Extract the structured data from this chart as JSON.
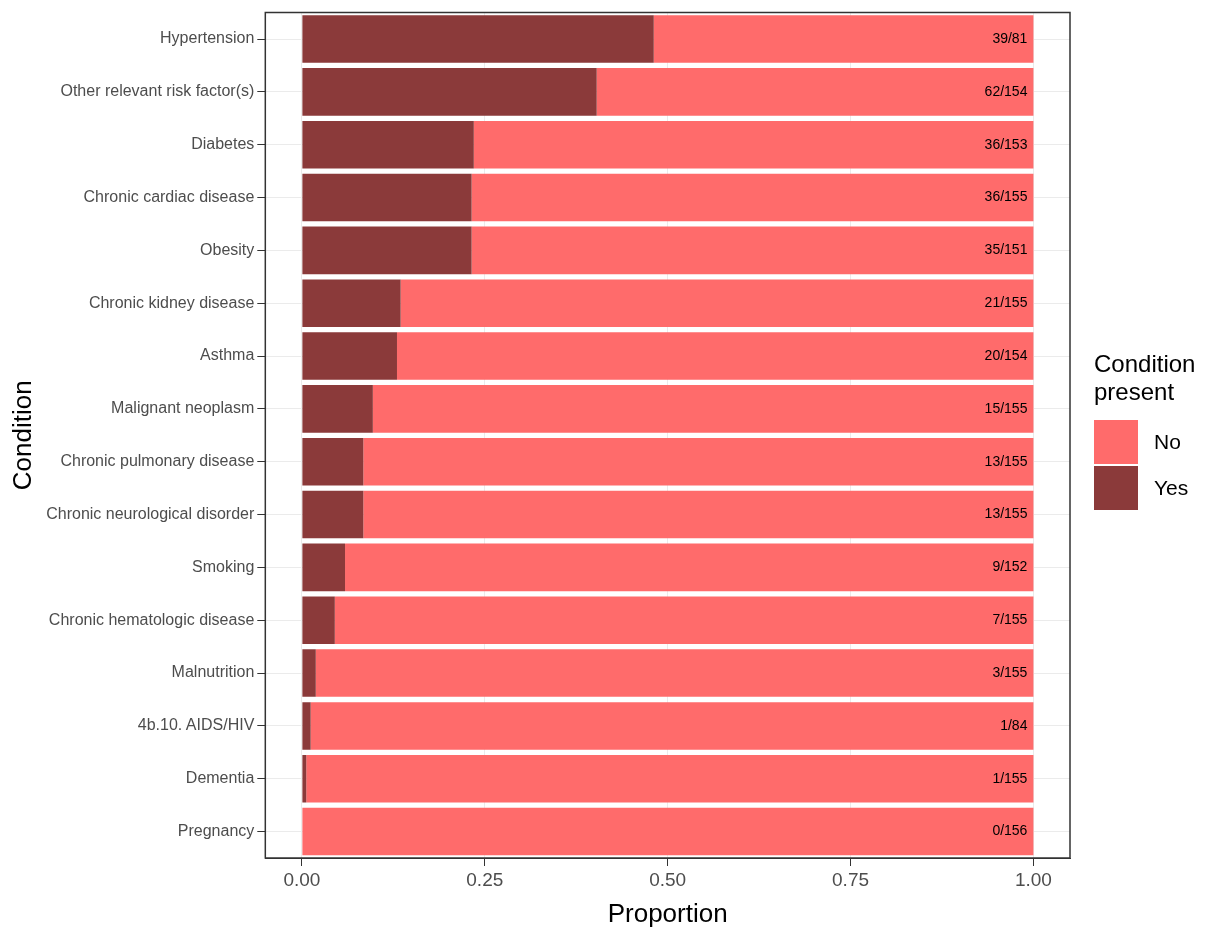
{
  "chart_data": {
    "type": "bar",
    "orientation": "horizontal",
    "stacked": true,
    "xlabel": "Proportion",
    "ylabel": "Condition",
    "legend_title": "Condition present",
    "legend": "right",
    "grid": true,
    "categories": [
      "Hypertension",
      "Other relevant risk factor(s)",
      "Diabetes",
      "Chronic cardiac disease",
      "Obesity",
      "Chronic kidney disease",
      "Asthma",
      "Malignant neoplasm",
      "Chronic pulmonary disease",
      "Chronic neurological disorder",
      "Smoking",
      "Chronic hematologic disease",
      "Malnutrition",
      "4b.10. AIDS/HIV",
      "Dementia",
      "Pregnancy"
    ],
    "xlim": [
      -0.05,
      1.05
    ],
    "xticks": [
      {
        "value": 0,
        "label": "0.00"
      },
      {
        "value": 0.25,
        "label": "0.25"
      },
      {
        "value": 0.5,
        "label": "0.50"
      },
      {
        "value": 0.75,
        "label": "0.75"
      },
      {
        "value": 1,
        "label": "1.00"
      }
    ],
    "series": [
      {
        "name": "Yes",
        "color": "#8b3a3a",
        "values": [
          0.481,
          0.403,
          0.235,
          0.232,
          0.232,
          0.135,
          0.13,
          0.097,
          0.084,
          0.084,
          0.059,
          0.045,
          0.019,
          0.012,
          0.006,
          0
        ]
      },
      {
        "name": "No",
        "color": "#ff6b6b",
        "values": [
          0.519,
          0.597,
          0.765,
          0.768,
          0.768,
          0.865,
          0.87,
          0.903,
          0.916,
          0.916,
          0.941,
          0.955,
          0.981,
          0.988,
          0.994,
          1
        ],
        "value_labels": [
          "39/81",
          "62/154",
          "36/153",
          "36/155",
          "35/151",
          "21/155",
          "20/154",
          "15/155",
          "13/155",
          "13/155",
          "9/152",
          "7/155",
          "3/155",
          "1/84",
          "1/155",
          "0/156"
        ]
      }
    ]
  }
}
